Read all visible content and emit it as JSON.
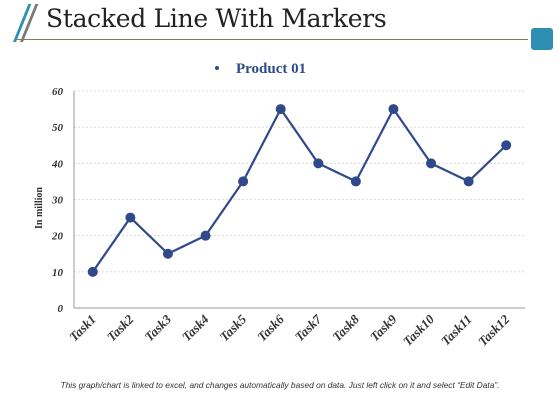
{
  "slide": {
    "title": "Stacked Line With Markers",
    "footer_note": "This graph/chart is linked to excel, and changes automatically based on data. Just left click on it and select “Edit Data”.",
    "accent_color": "#2e8fb3",
    "secondary_color": "#7a7a7a"
  },
  "chart_data": {
    "type": "line",
    "categories": [
      "Task1",
      "Task2",
      "Task3",
      "Task4",
      "Task5",
      "Task6",
      "Task7",
      "Task8",
      "Task9",
      "Task10",
      "Task11",
      "Task12"
    ],
    "series": [
      {
        "name": "Product 01",
        "values": [
          10,
          25,
          15,
          20,
          35,
          55,
          40,
          35,
          55,
          40,
          35,
          45
        ],
        "color": "#2f4a8a"
      }
    ],
    "ylabel": "In million",
    "xlabel": "",
    "ylim": [
      0,
      60
    ],
    "yticks": [
      0,
      10,
      20,
      30,
      40,
      50,
      60
    ],
    "grid": true,
    "legend_position": "top-center",
    "markers": "circle"
  }
}
